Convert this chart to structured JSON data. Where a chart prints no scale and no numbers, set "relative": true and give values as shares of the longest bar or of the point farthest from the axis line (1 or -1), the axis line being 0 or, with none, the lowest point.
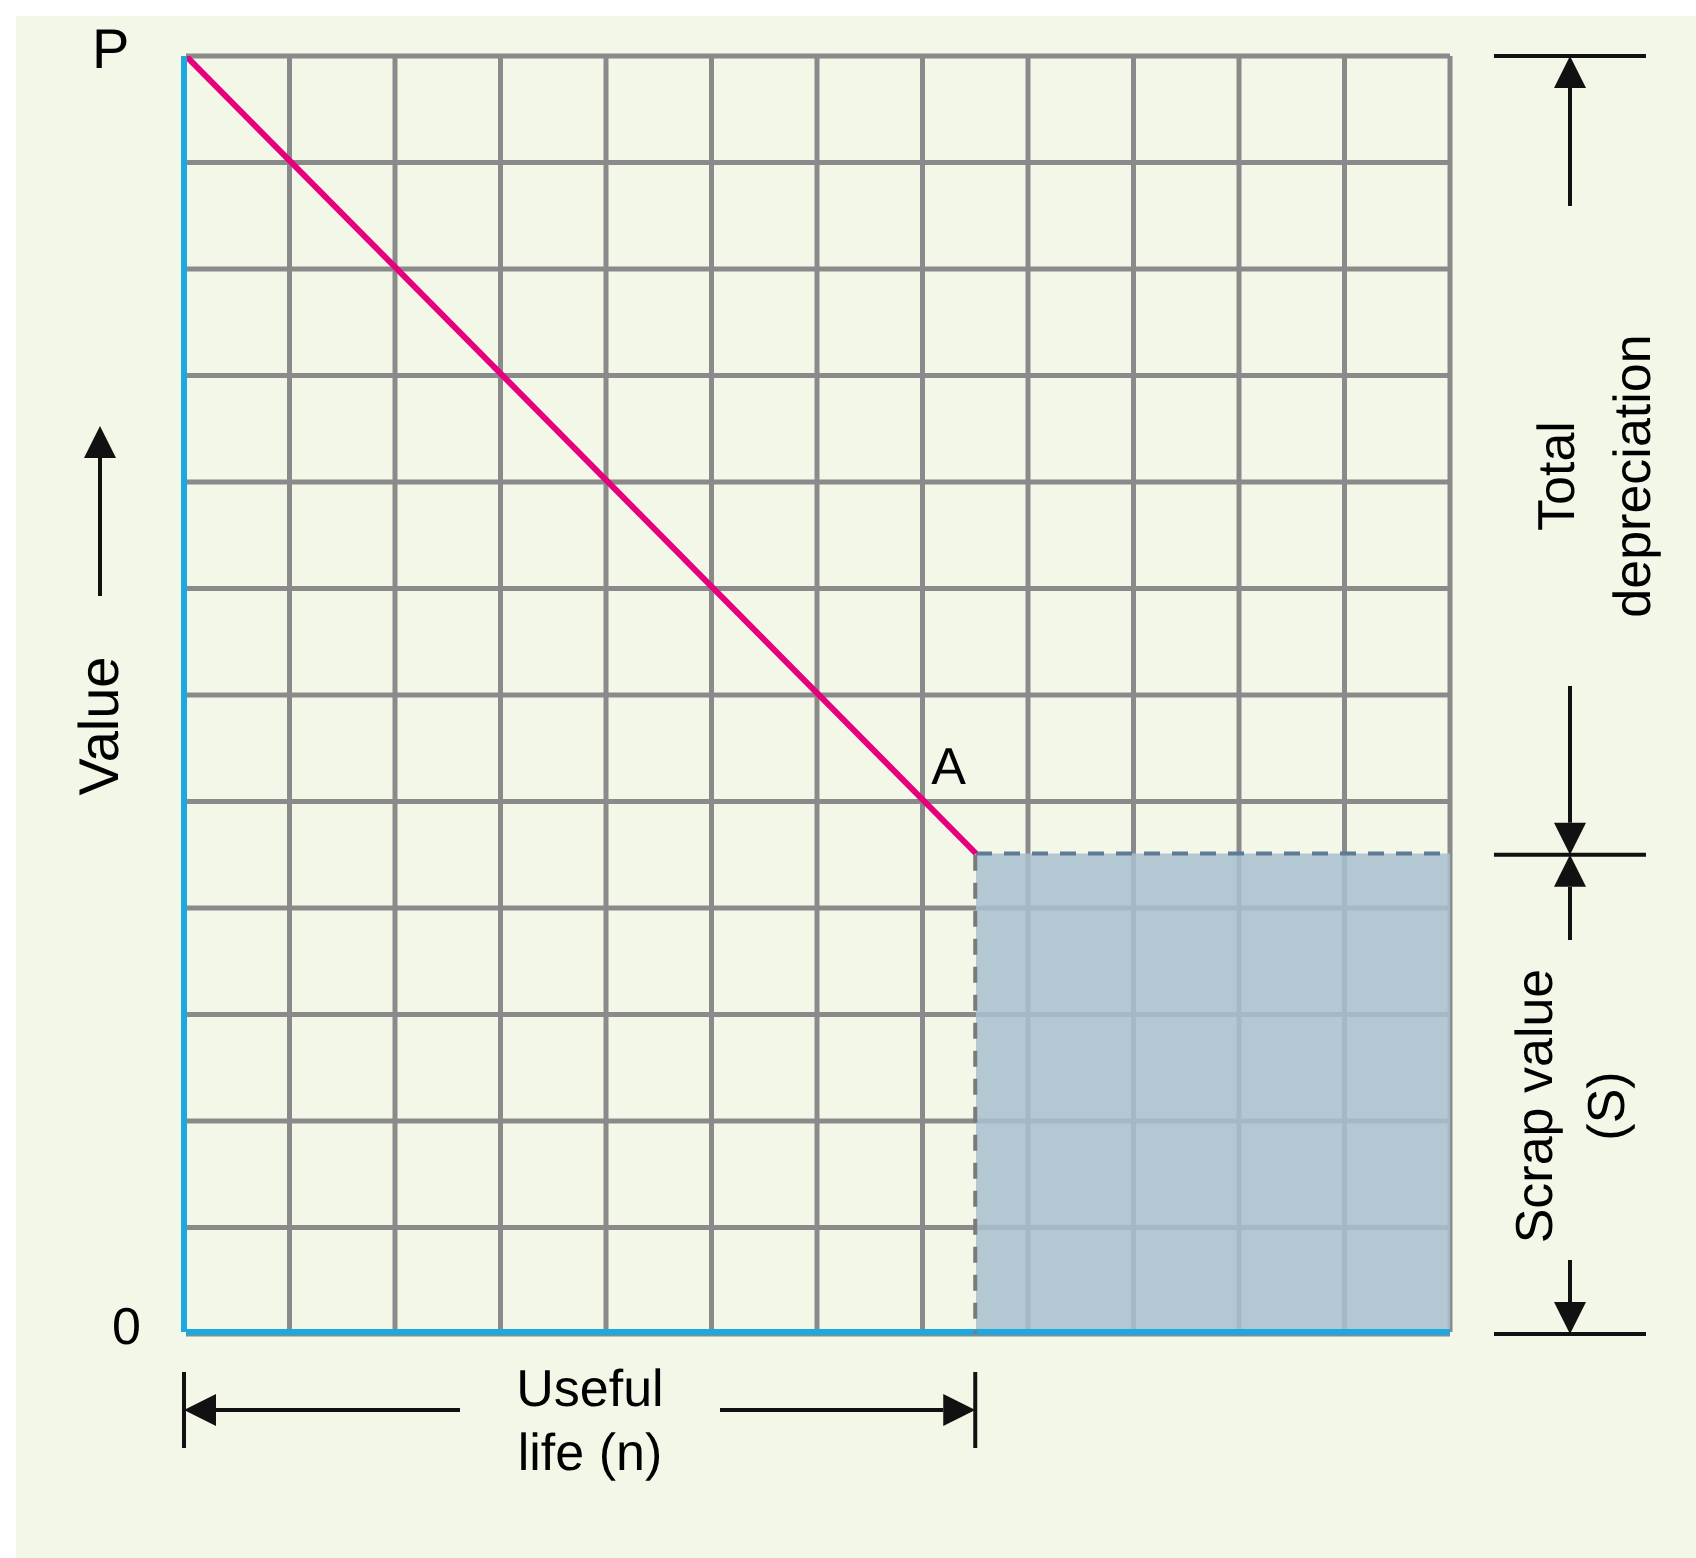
{
  "chart_data": {
    "type": "line",
    "relative": true,
    "ylabel": "Value",
    "grid": true,
    "marker": "none",
    "categories": [
      null,
      null,
      null,
      null,
      null,
      null,
      null,
      null,
      null,
      null,
      null,
      null,
      null,
      null,
      null,
      null,
      null,
      null,
      null,
      null,
      null,
      null,
      null,
      null,
      null
    ],
    "series": [
      {
        "color": "#e6007e",
        "values": [
          1,
          null,
          null,
          null,
          null,
          null,
          null,
          null,
          null,
          null,
          null,
          null,
          null,
          null,
          null,
          0.375,
          null,
          null,
          null,
          null,
          null,
          null,
          null,
          null,
          null
        ]
      },
      {
        "type": "area",
        "color": "#a9bfd0",
        "line_style": "dashed",
        "values": [
          null,
          null,
          null,
          null,
          null,
          null,
          null,
          null,
          null,
          null,
          null,
          null,
          null,
          null,
          null,
          0.375,
          0.375,
          0.375,
          0.375,
          0.375,
          0.375,
          0.375,
          0.375,
          0.375,
          0.375
        ]
      }
    ],
    "annotations": [
      "P",
      "0",
      "A",
      "Useful life (n)",
      "Total depreciation",
      "Scrap value (S)"
    ]
  }
}
